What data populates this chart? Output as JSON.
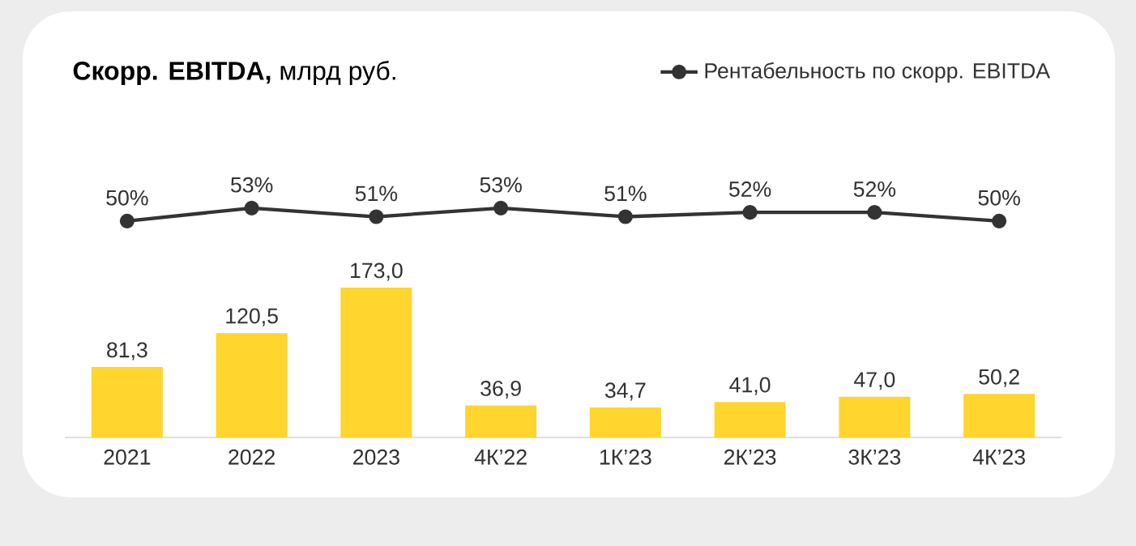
{
  "chart_data": [
    {
      "type": "line",
      "title": "**Скорр. EBITDA,** млрд руб.",
      "categories": [
        null,
        null,
        null,
        null,
        null,
        null,
        null,
        null
      ],
      "tick_labels": false,
      "legend": "top right",
      "marker": "circle",
      "line_style": "solid",
      "series": [
        {
          "name": "Рентабельность по скорр. EBITDA",
          "color": "#333333",
          "values": [
            50,
            53,
            51,
            53,
            51,
            52,
            52,
            50
          ],
          "value_labels": [
            "50%",
            "53%",
            "51%",
            "53%",
            "51%",
            "52%",
            "52%",
            "50%"
          ]
        }
      ]
    },
    {
      "type": "bar",
      "categories": [
        "2021",
        "2022",
        "2023",
        "4К’22",
        "1К’23",
        "2К’23",
        "3К’23",
        "4К’23"
      ],
      "color": "#ffd52e",
      "values": [
        81.3,
        120.5,
        173.0,
        36.9,
        34.7,
        41.0,
        47.0,
        50.2
      ],
      "value_labels": [
        "81,3",
        "120,5",
        "173,0",
        "36,9",
        "34,7",
        "41,0",
        "47,0",
        "50,2"
      ],
      "tick_labels": "x"
    }
  ]
}
